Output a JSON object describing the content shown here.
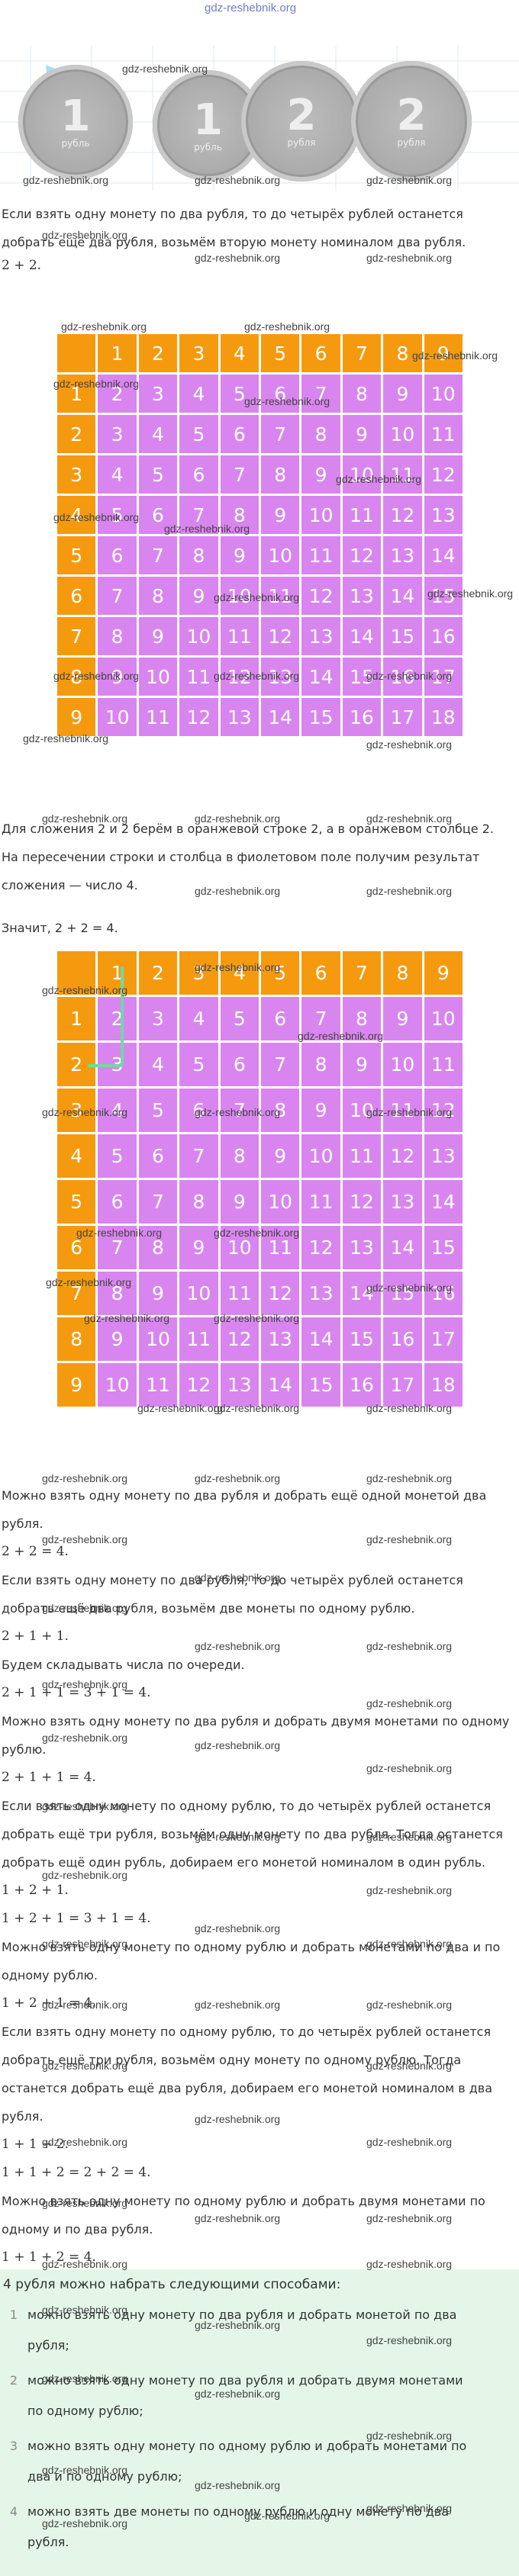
{
  "watermark": "gdz-reshebnik.org",
  "coins": [
    {
      "value": 1,
      "unit": "рубль"
    },
    {
      "value": 1,
      "unit": "рубль"
    },
    {
      "value": 2,
      "unit": "рубля"
    },
    {
      "value": 2,
      "unit": "рубля"
    }
  ],
  "intro": {
    "text": "Если взять одну монету по два рубля, то до четырёх рублей останется добрать ещё два рубля, возьмём вторую монету номиналом два рубля.",
    "expression": "2 + 2."
  },
  "tables": [
    {
      "columns": [
        1,
        2,
        3,
        4,
        5,
        6,
        7,
        8,
        9
      ],
      "rows": [
        [
          1,
          2,
          3,
          4,
          5,
          6,
          7,
          8,
          9,
          10
        ],
        [
          2,
          3,
          4,
          5,
          6,
          7,
          8,
          9,
          10,
          11
        ],
        [
          3,
          4,
          5,
          6,
          7,
          8,
          9,
          10,
          11,
          12
        ],
        [
          4,
          5,
          6,
          7,
          8,
          9,
          10,
          11,
          12,
          13
        ],
        [
          5,
          6,
          7,
          8,
          9,
          10,
          11,
          12,
          13,
          14
        ],
        [
          6,
          7,
          8,
          9,
          10,
          11,
          12,
          13,
          14,
          15
        ],
        [
          7,
          8,
          9,
          10,
          11,
          12,
          13,
          14,
          15,
          16
        ],
        [
          8,
          9,
          10,
          11,
          12,
          13,
          14,
          15,
          16,
          17
        ],
        [
          9,
          10,
          11,
          12,
          13,
          14,
          15,
          16,
          17,
          18
        ]
      ]
    },
    {
      "columns": [
        1,
        2,
        3,
        4,
        5,
        6,
        7,
        8,
        9
      ],
      "rows": [
        [
          1,
          2,
          3,
          4,
          5,
          6,
          7,
          8,
          9,
          10
        ],
        [
          2,
          3,
          4,
          5,
          6,
          7,
          8,
          9,
          10,
          11
        ],
        [
          3,
          4,
          5,
          6,
          7,
          8,
          9,
          10,
          11,
          12
        ],
        [
          4,
          5,
          6,
          7,
          8,
          9,
          10,
          11,
          12,
          13
        ],
        [
          5,
          6,
          7,
          8,
          9,
          10,
          11,
          12,
          13,
          14
        ],
        [
          6,
          7,
          8,
          9,
          10,
          11,
          12,
          13,
          14,
          15
        ],
        [
          7,
          8,
          9,
          10,
          11,
          12,
          13,
          14,
          15,
          16
        ],
        [
          8,
          9,
          10,
          11,
          12,
          13,
          14,
          15,
          16,
          17
        ],
        [
          9,
          10,
          11,
          12,
          13,
          14,
          15,
          16,
          17,
          18
        ]
      ]
    }
  ],
  "explanation": {
    "text": "Для сложения 2 и 2 берём в оранжевой строке 2, а в оранжевом столбце 2. На пересечении строки и столбца в фиолетовом поле получим результат сложения — число 4.",
    "conclusion": "Значит, 2 + 2 = 4."
  },
  "solutions": [
    {
      "kind": "text",
      "text": "Можно взять одну монету по два рубля и добрать ещё одной монетой два рубля."
    },
    {
      "kind": "math",
      "text": "2 + 2 = 4."
    },
    {
      "kind": "text",
      "text": "Если взять одну монету по два рубля, то до четырёх рублей останется добрать ещё два рубля, возьмём две монеты по одному рублю."
    },
    {
      "kind": "math",
      "text": "2 + 1 + 1."
    },
    {
      "kind": "text",
      "text": "Будем складывать числа по очереди."
    },
    {
      "kind": "math",
      "text": "2 + 1 + 1 = 3 + 1 = 4."
    },
    {
      "kind": "text",
      "text": "Можно взять одну монету по два рубля и добрать двумя монетами по одному рублю."
    },
    {
      "kind": "math",
      "text": "2 + 1 + 1 = 4."
    },
    {
      "kind": "text",
      "text": "Если взять одну монету по одному рублю, то до четырёх рублей останется добрать ещё три рубля, возьмём одну монету по два рубля. Тогда останется добрать ещё один рубль, добираем его монетой номиналом в один рубль."
    },
    {
      "kind": "math",
      "text": "1 + 2 + 1."
    },
    {
      "kind": "math",
      "text": "1 + 2 + 1 = 3 + 1 = 4."
    },
    {
      "kind": "text",
      "text": "Можно взять одну монету по одному рублю и добрать монетами по два и по одному рублю."
    },
    {
      "kind": "math",
      "text": "1 + 2 + 1 = 4."
    },
    {
      "kind": "text",
      "text": "Если взять одну монету по одному рублю, то до четырёх рублей останется добрать ещё три рубля, возьмём одну монету по одному рублю. Тогда останется добрать ещё два рубля, добираем его монетой номиналом в два рубля."
    },
    {
      "kind": "math",
      "text": "1 + 1 + 2."
    },
    {
      "kind": "math",
      "text": "1 + 1 + 2 = 2 + 2 = 4."
    },
    {
      "kind": "text",
      "text": "Можно взять одну монету по одному рублю и добрать двумя монетами по одному и по два рубля."
    },
    {
      "kind": "math",
      "text": "1 + 1 + 2 = 4."
    }
  ],
  "answer": {
    "lead": "4 рубля можно набрать следующими способами:",
    "items": [
      {
        "number": 1,
        "text": "можно взять одну монету по два рубля и добрать монетой по два рубля;"
      },
      {
        "number": 2,
        "text": "можно взять одну монету по два рубля и добрать двумя монетами по одному рублю;"
      },
      {
        "number": 3,
        "text": "можно взять одну монету по одному рублю и добрать монетами по два и по одному рублю;"
      },
      {
        "number": 4,
        "text": "можно взять две монеты по одному рублю и одну монету по два рубля."
      }
    ]
  }
}
